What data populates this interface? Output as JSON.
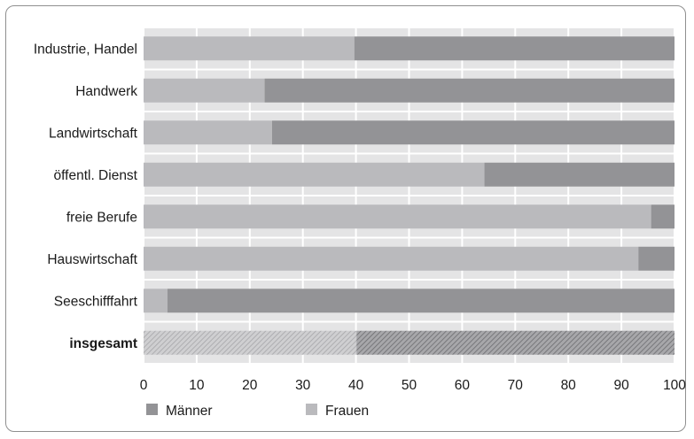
{
  "chart_data": {
    "type": "bar",
    "orientation": "horizontal",
    "stacked": true,
    "categories": [
      "Industrie, Handel",
      "Handwerk",
      "Landwirtschaft",
      "öffentl. Dienst",
      "freie Berufe",
      "Hauswirtschaft",
      "Seeschifffahrt",
      "insgesamt"
    ],
    "emphasized_category": "insgesamt",
    "series": [
      {
        "name": "Frauen",
        "color": "#bababd",
        "values": [
          39.7,
          22.8,
          24.2,
          64.2,
          95.6,
          93.2,
          4.5,
          40.1
        ]
      },
      {
        "name": "Männer",
        "color": "#939396",
        "values": [
          60.3,
          77.2,
          75.8,
          35.8,
          4.4,
          6.8,
          95.5,
          59.9
        ]
      }
    ],
    "x_ticks": [
      "0",
      "10",
      "20",
      "30",
      "40",
      "50",
      "60",
      "70",
      "80",
      "90",
      "100"
    ],
    "xlim": [
      0,
      100
    ],
    "grid": true,
    "legend": {
      "position": "bottom-left",
      "entries": [
        "Männer",
        "Frauen"
      ]
    },
    "title": "",
    "xlabel": "",
    "ylabel": ""
  }
}
